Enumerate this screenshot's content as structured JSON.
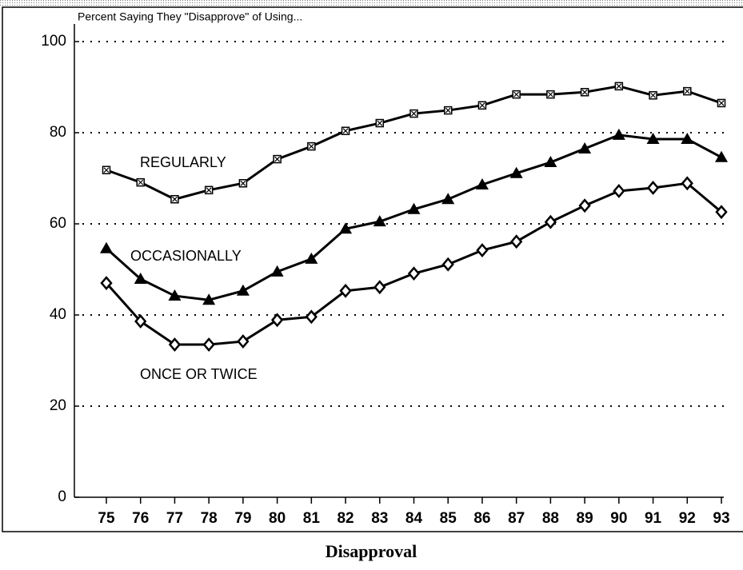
{
  "chart_data": {
    "type": "line",
    "title": "Percent Saying They \"Disapprove\" of Using...",
    "caption": "Disapproval",
    "categories": [
      "75",
      "76",
      "77",
      "78",
      "79",
      "80",
      "81",
      "82",
      "83",
      "84",
      "85",
      "86",
      "87",
      "88",
      "89",
      "90",
      "91",
      "92",
      "93"
    ],
    "series": [
      {
        "name": "REGULARLY",
        "color": "#000000",
        "marker": "square",
        "values": [
          71.8,
          69.1,
          65.4,
          67.4,
          68.9,
          74.2,
          77.0,
          80.4,
          82.1,
          84.2,
          84.9,
          86.0,
          88.4,
          88.4,
          88.9,
          90.2,
          88.2,
          89.1,
          86.5
        ]
      },
      {
        "name": "OCCASIONALLY",
        "color": "#000000",
        "marker": "triangle",
        "values": [
          54.6,
          47.9,
          44.2,
          43.3,
          45.3,
          49.5,
          52.3,
          58.9,
          60.5,
          63.2,
          65.4,
          68.6,
          71.1,
          73.5,
          76.5,
          79.5,
          78.6,
          78.6,
          74.6
        ]
      },
      {
        "name": "ONCE OR TWICE",
        "color": "#000000",
        "marker": "diamond",
        "values": [
          47.0,
          38.6,
          33.5,
          33.5,
          34.2,
          38.9,
          39.6,
          45.3,
          46.1,
          49.1,
          51.1,
          54.2,
          56.1,
          60.4,
          64.0,
          67.2,
          67.9,
          68.9,
          62.6
        ]
      }
    ],
    "ylim": [
      0,
      100
    ],
    "yticks": [
      0,
      20,
      40,
      60,
      80,
      100
    ],
    "grid": true
  }
}
